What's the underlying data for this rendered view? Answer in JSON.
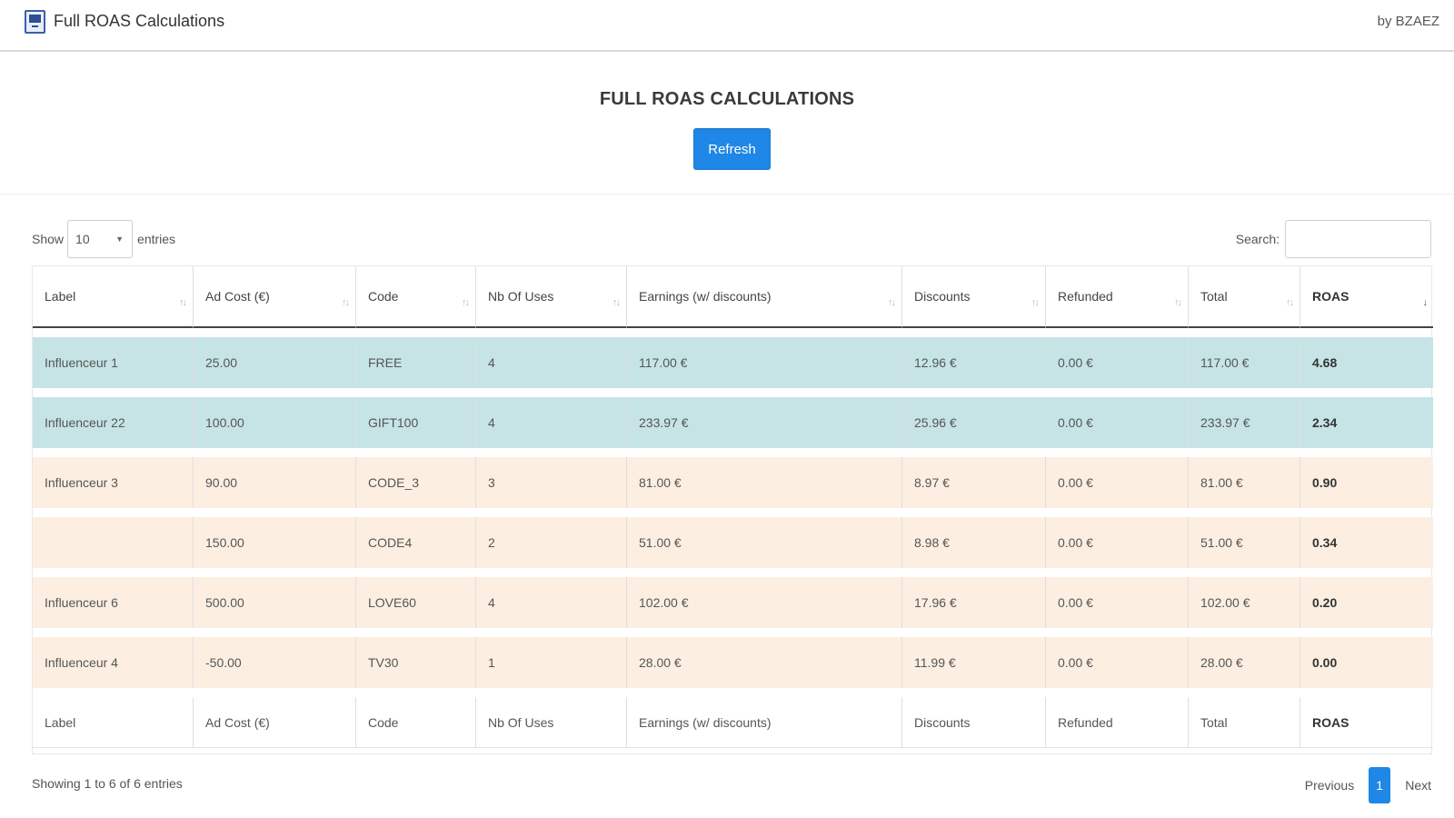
{
  "app": {
    "title": "Full ROAS Calculations",
    "by": "by BZAEZ"
  },
  "page": {
    "heading": "FULL ROAS CALCULATIONS",
    "refresh_label": "Refresh"
  },
  "length": {
    "show": "Show",
    "value": "10",
    "entries": "entries"
  },
  "search": {
    "label": "Search:",
    "value": ""
  },
  "columns": [
    "Label",
    "Ad Cost (€)",
    "Code",
    "Nb Of Uses",
    "Earnings (w/ discounts)",
    "Discounts",
    "Refunded",
    "Total",
    "ROAS"
  ],
  "rows": [
    [
      "Influenceur 1",
      "25.00",
      "FREE",
      "4",
      "117.00 €",
      "12.96 €",
      "0.00 €",
      "117.00 €",
      "4.68"
    ],
    [
      "Influenceur 22",
      "100.00",
      "GIFT100",
      "4",
      "233.97 €",
      "25.96 €",
      "0.00 €",
      "233.97 €",
      "2.34"
    ],
    [
      "Influenceur 3",
      "90.00",
      "CODE_3",
      "3",
      "81.00 €",
      "8.97 €",
      "0.00 €",
      "81.00 €",
      "0.90"
    ],
    [
      "",
      "150.00",
      "CODE4",
      "2",
      "51.00 €",
      "8.98 €",
      "0.00 €",
      "51.00 €",
      "0.34"
    ],
    [
      "Influenceur 6",
      "500.00",
      "LOVE60",
      "4",
      "102.00 €",
      "17.96 €",
      "0.00 €",
      "102.00 €",
      "0.20"
    ],
    [
      "Influenceur 4",
      "-50.00",
      "TV30",
      "1",
      "28.00 €",
      "11.99 €",
      "0.00 €",
      "28.00 €",
      "0.00"
    ]
  ],
  "row_colors": {
    "high_roas": "#c6e4e6",
    "low_roas": "#fcefe2"
  },
  "footer": {
    "info": "Showing 1 to 6 of 6 entries",
    "previous": "Previous",
    "page": "1",
    "next": "Next"
  },
  "accent_color": "#1f87e5",
  "icons": {
    "sort": "sort-arrows-icon",
    "app": "monitor-chart-icon",
    "dropdown": "chevron-down-icon"
  }
}
